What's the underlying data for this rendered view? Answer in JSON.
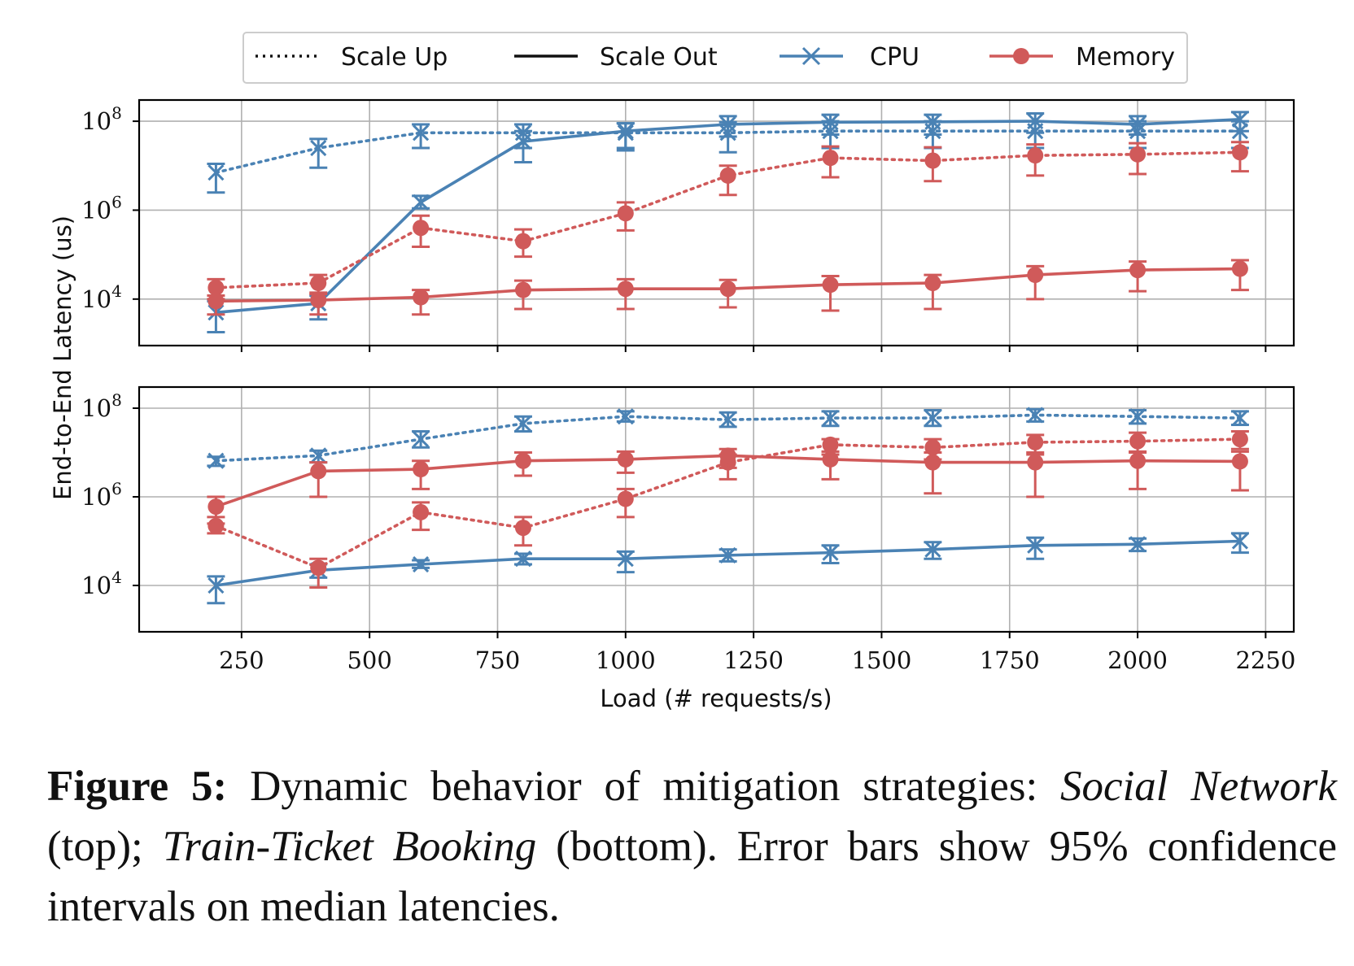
{
  "legend": {
    "scale_up": "Scale Up",
    "scale_out": "Scale Out",
    "cpu": "CPU",
    "memory": "Memory"
  },
  "colors": {
    "cpu": "#4a82b4",
    "memory": "#d05a5a",
    "grid": "#b0b0b0",
    "axis": "#000000"
  },
  "ylabel": "End-to-End Latency (us)",
  "xlabel": "Load (# requests/s)",
  "x_ticks": [
    "250",
    "500",
    "750",
    "1000",
    "1250",
    "1500",
    "1750",
    "2000",
    "2250"
  ],
  "y_tick_exponents": [
    "8",
    "6",
    "4"
  ],
  "caption": {
    "label": "Figure 5:",
    "text1": " Dynamic behavior of mitigation strategies: ",
    "italic1": "Social Network",
    "text2": " (top); ",
    "italic2": "Train-Ticket Booking",
    "text3": " (bottom). Error bars show 95% confidence intervals on median latencies."
  },
  "chart_data": [
    {
      "type": "line",
      "panel": "top",
      "y_scale": "log",
      "xlim": [
        50,
        2305
      ],
      "ylim": [
        900,
        300000000
      ],
      "grid": true,
      "legend_placement": "top-center",
      "x": [
        200,
        400,
        600,
        800,
        1000,
        1200,
        1400,
        1600,
        1800,
        2000,
        2200
      ],
      "series": [
        {
          "name": "CPU",
          "strategy": "Scale Up",
          "color": "#4a82b4",
          "marker": "x",
          "dash": true,
          "values": [
            7000000,
            25000000,
            55000000,
            55000000,
            55000000,
            55000000,
            60000000,
            60000000,
            60000000,
            60000000,
            60000000
          ],
          "err_low": [
            2500000,
            9000000,
            25000000,
            25000000,
            22000000,
            20000000,
            25000000,
            25000000,
            25000000,
            25000000,
            25000000
          ],
          "err_high": [
            11000000,
            40000000,
            85000000,
            85000000,
            90000000,
            95000000,
            100000000,
            100000000,
            100000000,
            100000000,
            100000000
          ]
        },
        {
          "name": "CPU",
          "strategy": "Scale Out",
          "color": "#4a82b4",
          "marker": "x",
          "dash": false,
          "values": [
            5000,
            8000,
            1500000,
            35000000,
            60000000,
            85000000,
            95000000,
            97000000,
            100000000,
            85000000,
            110000000
          ],
          "err_low": [
            1800,
            3500,
            1100000,
            12000000,
            25000000,
            45000000,
            50000000,
            50000000,
            55000000,
            50000000,
            60000000
          ],
          "err_high": [
            9000,
            12000,
            2100000,
            60000000,
            90000000,
            130000000,
            140000000,
            140000000,
            150000000,
            130000000,
            160000000
          ]
        },
        {
          "name": "Memory",
          "strategy": "Scale Up",
          "color": "#d05a5a",
          "marker": "o",
          "dash": true,
          "values": [
            18000,
            23000,
            400000,
            200000,
            850000,
            6000000,
            15000000,
            13000000,
            17000000,
            18000000,
            20000000
          ],
          "err_low": [
            10000,
            14000,
            150000,
            90000,
            350000,
            2200000,
            5500000,
            4500000,
            6000000,
            6500000,
            7500000
          ],
          "err_high": [
            28000,
            35000,
            750000,
            370000,
            1500000,
            10000000,
            27000000,
            26000000,
            30000000,
            32000000,
            34000000
          ]
        },
        {
          "name": "Memory",
          "strategy": "Scale Out",
          "color": "#d05a5a",
          "marker": "o",
          "dash": false,
          "values": [
            9000,
            9500,
            11000,
            16000,
            17000,
            17000,
            21000,
            23000,
            35000,
            45000,
            48000
          ],
          "err_low": [
            4500,
            4500,
            4500,
            6000,
            6000,
            6500,
            5500,
            6000,
            10000,
            15000,
            16000
          ],
          "err_high": [
            12000,
            13000,
            16000,
            26000,
            28000,
            27000,
            33000,
            35000,
            55000,
            70000,
            75000
          ]
        }
      ]
    },
    {
      "type": "line",
      "panel": "bottom",
      "y_scale": "log",
      "xlim": [
        50,
        2305
      ],
      "ylim": [
        900,
        300000000
      ],
      "grid": true,
      "x": [
        200,
        400,
        600,
        800,
        1000,
        1200,
        1400,
        1600,
        1800,
        2000,
        2200
      ],
      "series": [
        {
          "name": "CPU",
          "strategy": "Scale Up",
          "color": "#4a82b4",
          "marker": "x",
          "dash": true,
          "values": [
            6500000,
            8500000,
            20000000,
            45000000,
            65000000,
            55000000,
            60000000,
            60000000,
            70000000,
            65000000,
            60000000
          ],
          "err_low": [
            5000000,
            6000000,
            13000000,
            30000000,
            50000000,
            38000000,
            40000000,
            40000000,
            50000000,
            45000000,
            42000000
          ],
          "err_high": [
            8000000,
            11000000,
            30000000,
            65000000,
            85000000,
            80000000,
            85000000,
            90000000,
            95000000,
            90000000,
            85000000
          ]
        },
        {
          "name": "CPU",
          "strategy": "Scale Out",
          "color": "#4a82b4",
          "marker": "x",
          "dash": false,
          "values": [
            10000,
            22000,
            30000,
            40000,
            40000,
            48000,
            55000,
            65000,
            80000,
            85000,
            100000
          ],
          "err_low": [
            4000,
            15000,
            25000,
            30000,
            20000,
            35000,
            32000,
            40000,
            40000,
            60000,
            55000
          ],
          "err_high": [
            16000,
            30000,
            37000,
            52000,
            58000,
            65000,
            80000,
            95000,
            120000,
            115000,
            150000
          ]
        },
        {
          "name": "Memory",
          "strategy": "Scale Up",
          "color": "#d05a5a",
          "marker": "o",
          "dash": true,
          "values": [
            220000,
            25000,
            450000,
            200000,
            900000,
            6000000,
            15000000,
            13000000,
            17000000,
            18000000,
            20000000
          ],
          "err_low": [
            150000,
            9000,
            180000,
            80000,
            350000,
            2500000,
            9000000,
            7000000,
            9000000,
            10000000,
            12000000
          ],
          "err_high": [
            350000,
            40000,
            750000,
            350000,
            1500000,
            9000000,
            20000000,
            20000000,
            25000000,
            28000000,
            30000000
          ]
        },
        {
          "name": "Memory",
          "strategy": "Scale Out",
          "color": "#d05a5a",
          "marker": "o",
          "dash": false,
          "values": [
            600000,
            3800000,
            4200000,
            6500000,
            7000000,
            8500000,
            7000000,
            6000000,
            6000000,
            6500000,
            6300000
          ],
          "err_low": [
            250000,
            1000000,
            1500000,
            3000000,
            3500000,
            4500000,
            2500000,
            1200000,
            1000000,
            1500000,
            1400000
          ],
          "err_high": [
            1000000,
            6000000,
            6500000,
            10000000,
            10500000,
            12000000,
            10500000,
            10000000,
            10000000,
            10500000,
            10500000
          ]
        }
      ]
    }
  ]
}
